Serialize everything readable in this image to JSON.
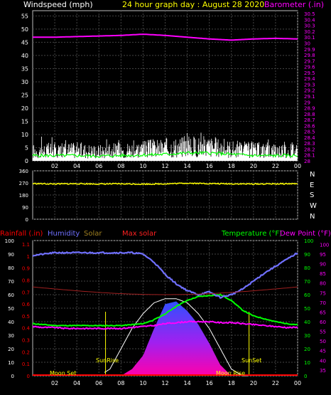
{
  "header": {
    "left": "Windspeed (mph)",
    "center": "24 hour graph day : August 28 2020",
    "right": "Barometer (.in)"
  },
  "colors": {
    "header_left": "#ffffff",
    "header_center": "#ffff00",
    "header_right": "#ff00ff",
    "wind": "#ffffff",
    "wind_avg": "#00ff00",
    "barometer": "#ff00ff",
    "direction": "#ffff00",
    "rainfall": "#ff0000",
    "humidity": "#7070ff",
    "solar": "#a08020",
    "maxsolar": "#ff2020",
    "temperature": "#00ff00",
    "dewpoint": "#ff00ff",
    "grid": "#444444"
  },
  "time_ticks": [
    "02",
    "04",
    "06",
    "08",
    "10",
    "12",
    "14",
    "16",
    "18",
    "20",
    "22",
    "00"
  ],
  "panel1": {
    "left_ticks": [
      "0",
      "5",
      "10",
      "15",
      "20",
      "25",
      "30",
      "35",
      "40",
      "45",
      "50",
      "55"
    ],
    "right_ticks": [
      "28",
      "28.1",
      "28.2",
      "28.3",
      "28.4",
      "28.5",
      "28.6",
      "28.7",
      "28.8",
      "28.9",
      "29",
      "29.1",
      "29.2",
      "29.3",
      "29.4",
      "29.5",
      "29.6",
      "29.7",
      "29.8",
      "29.9",
      "30",
      "30.1",
      "30.2",
      "30.3",
      "30.4",
      "30.5"
    ]
  },
  "panel2": {
    "left_ticks": [
      "0",
      "90",
      "180",
      "270",
      "360"
    ],
    "right_labels": [
      "N",
      "W",
      "S",
      "E",
      "N"
    ]
  },
  "panel3": {
    "legend": {
      "rainfall": "Rainfall (.in)",
      "humidity": "Humidity",
      "solar": "Solar",
      "maxsolar": "Max solar",
      "temperature": "Temperature (°F)",
      "dewpoint": "Dew Point (°F)"
    },
    "left_pct_ticks": [
      "0",
      "10",
      "20",
      "30",
      "40",
      "50",
      "60",
      "70",
      "80",
      "90",
      "100"
    ],
    "left_rain_ticks": [
      "0",
      "0.1",
      "0.2",
      "0.3",
      "0.4",
      "0.5",
      "0.6",
      "0.7",
      "0.8",
      "0.9",
      "1",
      "1.1"
    ],
    "right_temp_ticks": [
      "35",
      "40",
      "45",
      "50",
      "55",
      "60",
      "65",
      "70",
      "75",
      "80",
      "85",
      "90",
      "95",
      "100"
    ],
    "right_green_ticks": [
      "0",
      "10",
      "20",
      "30",
      "40",
      "50",
      "60",
      "70",
      "80",
      "90",
      "100"
    ],
    "annotations": {
      "moonset": "Moon Set",
      "sunrise": "SunRise",
      "moonrise": "Moon Rise",
      "sunset": "SunSet"
    }
  },
  "chart_data": [
    {
      "type": "line",
      "x": [
        0,
        2,
        4,
        6,
        8,
        10,
        12,
        14,
        16,
        18,
        20,
        22,
        24
      ],
      "series": [
        {
          "axis": "right",
          "values": [
            30.1,
            30.1,
            30.11,
            30.12,
            30.13,
            30.15,
            30.13,
            30.1,
            30.07,
            30.05,
            30.07,
            30.08,
            30.07
          ]
        },
        {
          "values": [
            4,
            4.5,
            4.5,
            4,
            4.5,
            5,
            5.5,
            6,
            6,
            5,
            4.5,
            4.5,
            5
          ]
        },
        {
          "values": [
            2,
            2,
            2,
            1.8,
            2,
            2.2,
            2.5,
            3,
            3,
            2.5,
            2,
            2,
            2
          ]
        }
      ],
      "ylim": [
        0,
        57
      ],
      "y2lim": [
        28,
        30.55
      ]
    },
    {
      "type": "scatter",
      "x": [
        0,
        2,
        4,
        6,
        8,
        10,
        12,
        14,
        16,
        18,
        20,
        22,
        24
      ],
      "series": [
        {
          "values": [
            265,
            262,
            264,
            262,
            263,
            261,
            263,
            268,
            265,
            263,
            262,
            263,
            264
          ]
        }
      ],
      "ylim": [
        0,
        360
      ]
    },
    {
      "type": "line",
      "x": [
        0,
        1,
        2,
        3,
        4,
        5,
        6,
        7,
        8,
        9,
        10,
        11,
        12,
        13,
        14,
        15,
        16,
        17,
        18,
        19,
        20,
        21,
        22,
        23,
        24
      ],
      "series": [
        {
          "axis": "left",
          "values": [
            89,
            90,
            91,
            91,
            91,
            91,
            91,
            91,
            91,
            91,
            90,
            84,
            75,
            68,
            63,
            60,
            62,
            58,
            60,
            64,
            70,
            76,
            81,
            86,
            91
          ]
        },
        {
          "axis": "right",
          "values": [
            59,
            58.5,
            58,
            58,
            58,
            58,
            58,
            58,
            58,
            58.5,
            59,
            61,
            64,
            68,
            71,
            73,
            73.5,
            74,
            71,
            66,
            63,
            61.5,
            60,
            59,
            58.5
          ]
        },
        {
          "axis": "right",
          "values": [
            57.5,
            57,
            57,
            56.5,
            56.5,
            56.5,
            56.5,
            56.5,
            56.5,
            57,
            57.5,
            58,
            59,
            59.5,
            60,
            60,
            60,
            59.5,
            59.5,
            59,
            58.5,
            58,
            57.5,
            57,
            57
          ]
        },
        {
          "axis": "left",
          "values": [
            0,
            0,
            0,
            0,
            0,
            0,
            0,
            0,
            0,
            5,
            15,
            35,
            53,
            55,
            48,
            38,
            24,
            8,
            0,
            0,
            0,
            0,
            0,
            0,
            0
          ]
        },
        {
          "axis": "left",
          "values": [
            0,
            0,
            0,
            0,
            0,
            0,
            0,
            5,
            20,
            35,
            46,
            54,
            57,
            57,
            54,
            46,
            35,
            20,
            5,
            0,
            0,
            0,
            0,
            0,
            0
          ]
        },
        {
          "axis": "left",
          "values": [
            0,
            0,
            0,
            0,
            0,
            0,
            0,
            0,
            0,
            0,
            0,
            0,
            0,
            0,
            0,
            0,
            0,
            0,
            0,
            0,
            0,
            0,
            0,
            0,
            0
          ]
        }
      ],
      "ylim": [
        0,
        100
      ],
      "y2lim": [
        32,
        102
      ]
    }
  ]
}
